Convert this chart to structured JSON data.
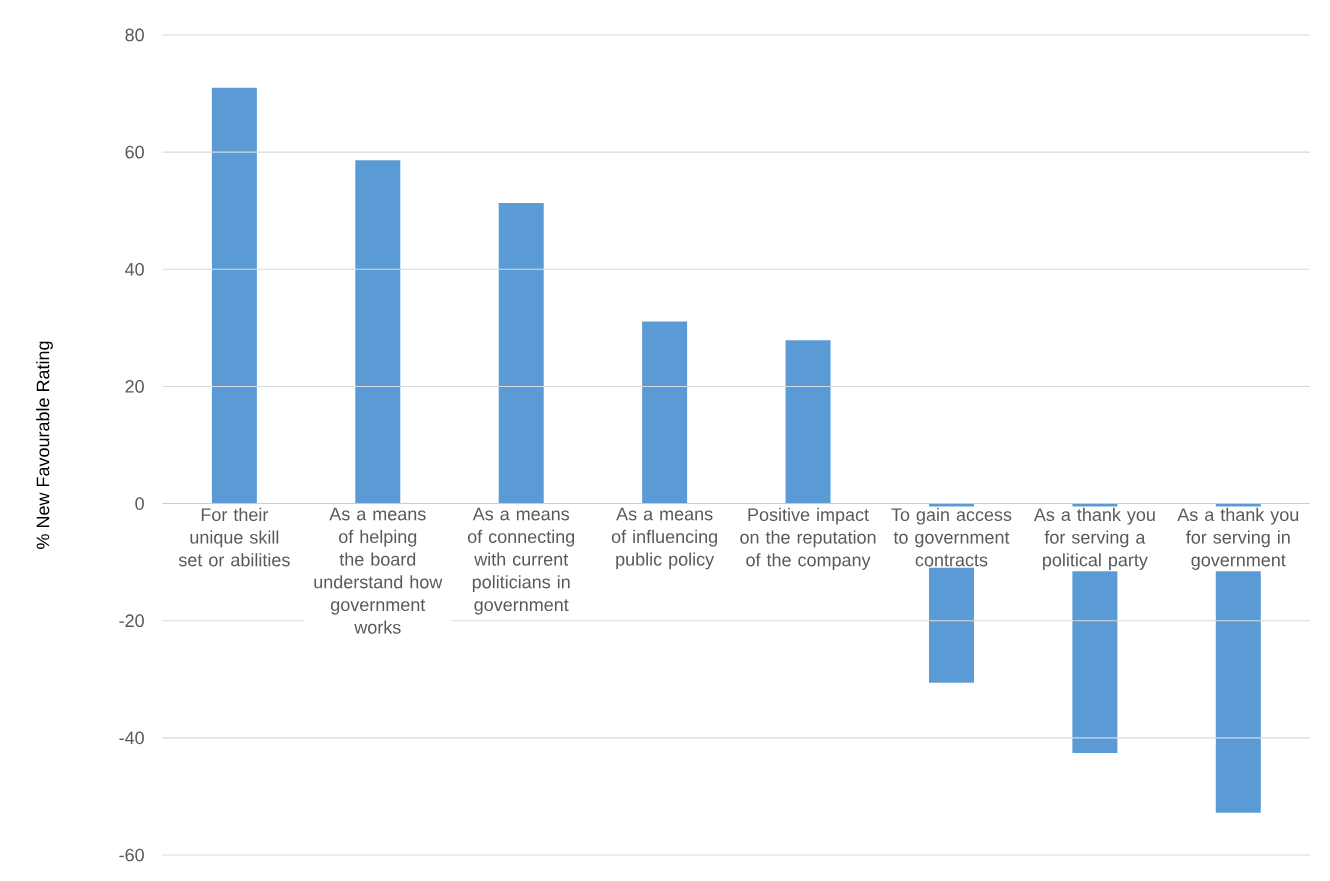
{
  "chart_data": {
    "type": "bar",
    "ylabel": "% New Favourable Rating",
    "categories": [
      "For their unique skill set or abilities",
      "As a means of helping the board understand how government works",
      "As a means of connecting with current politicians in government",
      "As a means of influencing public policy",
      "Positive impact on the reputation of the company",
      "To gain access to government contracts",
      "As a thank you for serving a political party",
      "As a thank you for serving in government"
    ],
    "values": [
      71,
      58.6,
      51.3,
      31.1,
      27.9,
      -30.6,
      -42.6,
      -52.8
    ],
    "color": "#5b9bd5",
    "ylim": [
      -60,
      80
    ],
    "yticks": [
      -60,
      -40,
      -20,
      0,
      20,
      40,
      60,
      80
    ],
    "grid": "y"
  }
}
